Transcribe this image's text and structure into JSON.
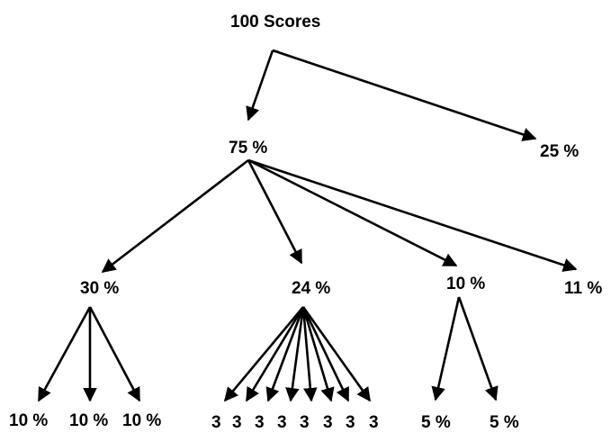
{
  "diagram": {
    "root": "100 Scores",
    "level1": [
      "75 %",
      "25 %"
    ],
    "level2": [
      "30 %",
      "24 %",
      "10 %",
      "11 %"
    ],
    "leaves_30": [
      "10 %",
      "10 %",
      "10 %"
    ],
    "leaves_24": [
      "3",
      "3",
      "3",
      "3",
      "3",
      "3",
      "3",
      "3"
    ],
    "leaves_10": [
      "5 %",
      "5 %"
    ],
    "line_color": "#000000",
    "text_color": "#000000"
  }
}
